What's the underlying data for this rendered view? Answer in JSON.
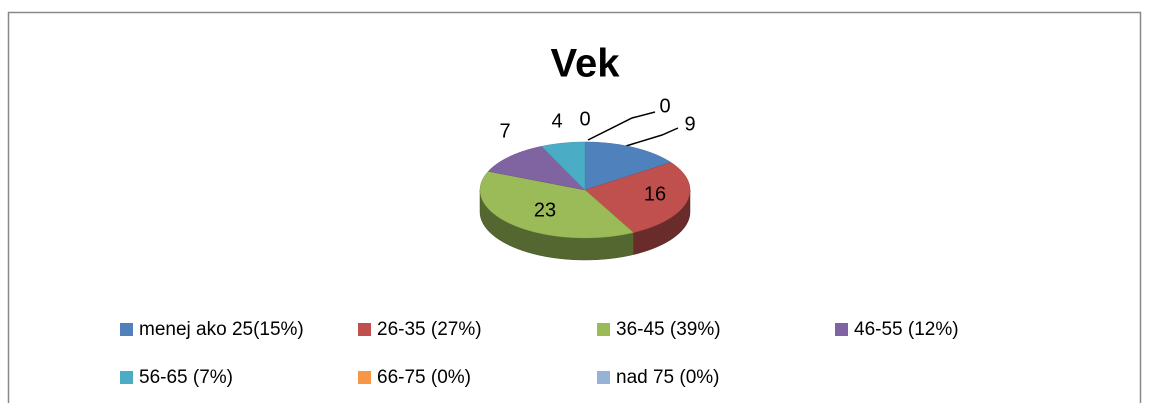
{
  "chart_data": {
    "type": "pie3d",
    "title": "Vek",
    "categories": [
      "menej ako 25(15%)",
      "26-35 (27%)",
      "36-45 (39%)",
      "46-55 (12%)",
      "56-65 (7%)",
      "66-75 (0%)",
      "nad 75 (0%)"
    ],
    "values": [
      9,
      16,
      23,
      7,
      4,
      0,
      0
    ],
    "colors": [
      "#4f81bd",
      "#c0504d",
      "#9bbb59",
      "#8064a2",
      "#4bacc6",
      "#f79646",
      "#95b3d7"
    ],
    "legend": "bottom"
  }
}
